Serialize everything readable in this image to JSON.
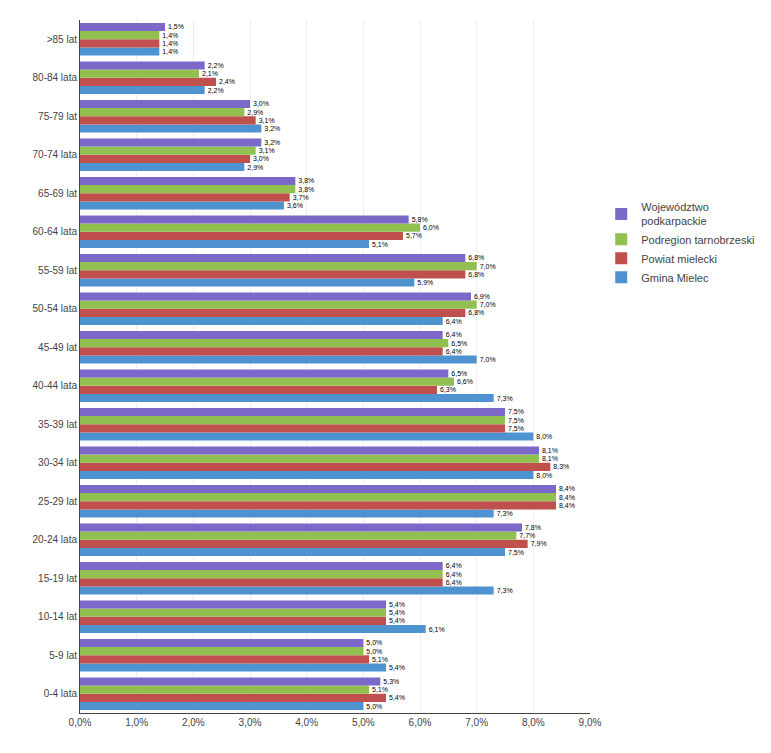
{
  "chart_data": {
    "type": "bar",
    "orientation": "horizontal",
    "categories": [
      "0-4 lata",
      "5-9 lat",
      "10-14 lat",
      "15-19 lat",
      "20-24 lata",
      "25-29 lat",
      "30-34 lat",
      "35-39 lat",
      "40-44 lata",
      "45-49 lat",
      "50-54 lata",
      "55-59 lat",
      "60-64 lata",
      "65-69 lat",
      "70-74 lata",
      "75-79 lat",
      "80-84 lata",
      ">85 lat"
    ],
    "series": [
      {
        "name": "Województwo\npodkarpackie",
        "color": "#7B68C8",
        "values": [
          5.3,
          5.0,
          5.4,
          6.4,
          7.8,
          8.4,
          8.1,
          7.5,
          6.5,
          6.4,
          6.9,
          6.8,
          5.8,
          3.8,
          3.2,
          3.0,
          2.2,
          1.5
        ],
        "value_labels": [
          "5,3%",
          "5,0%",
          "5,4%",
          "6,4%",
          "7,8%",
          "8,4%",
          "8,1%",
          "7,5%",
          "6,5%",
          "6,4%",
          "6,9%",
          "6,8%",
          "5,8%",
          "3,8%",
          "3,2%",
          "3,0%",
          "2,2%",
          "1,5%"
        ]
      },
      {
        "name": "Podregion tarnobrzeski",
        "color": "#92C050",
        "values": [
          5.1,
          5.0,
          5.4,
          6.4,
          7.7,
          8.4,
          8.1,
          7.5,
          6.6,
          6.5,
          7.0,
          7.0,
          6.0,
          3.8,
          3.1,
          2.9,
          2.1,
          1.4
        ],
        "value_labels": [
          "5,1%",
          "5,0%",
          "5,4%",
          "6,4%",
          "7,7%",
          "8,4%",
          "8,1%",
          "7,5%",
          "6,6%",
          "6,5%",
          "7,0%",
          "7,0%",
          "6,0%",
          "3,8%",
          "3,1%",
          "2,9%",
          "2,1%",
          "1,4%"
        ]
      },
      {
        "name": "Powiat mielecki",
        "color": "#C0504D",
        "values": [
          5.4,
          5.1,
          5.4,
          6.4,
          7.9,
          8.4,
          8.3,
          7.5,
          6.3,
          6.4,
          6.8,
          6.8,
          5.7,
          3.7,
          3.0,
          3.1,
          2.4,
          1.4
        ],
        "value_labels": [
          "5,4%",
          "5,1%",
          "5,4%",
          "6,4%",
          "7,9%",
          "8,4%",
          "8,3%",
          "7,5%",
          "6,3%",
          "6,4%",
          "6,8%",
          "6,8%",
          "5,7%",
          "3,7%",
          "3,0%",
          "3,1%",
          "2,4%",
          "1,4%"
        ]
      },
      {
        "name": "Gmina Mielec",
        "color": "#4E92CF",
        "values": [
          5.0,
          5.4,
          6.1,
          7.3,
          7.5,
          7.3,
          8.0,
          8.0,
          7.3,
          7.0,
          6.4,
          5.9,
          5.1,
          3.6,
          2.9,
          3.2,
          2.2,
          1.4
        ],
        "value_labels": [
          "5,0%",
          "5,4%",
          "6,1%",
          "7,3%",
          "7,5%",
          "7,3%",
          "8,0%",
          "8,0%",
          "7,3%",
          "7,0%",
          "6,4%",
          "5,9%",
          "5,1%",
          "3,6%",
          "2,9%",
          "3,2%",
          "2,2%",
          "1,4%"
        ]
      }
    ],
    "xlim": [
      0.0,
      9.0
    ],
    "xticks": [
      {
        "value": 0,
        "label": "0,0%"
      },
      {
        "value": 1,
        "label": "1,0%"
      },
      {
        "value": 2,
        "label": "2,0%"
      },
      {
        "value": 3,
        "label": "3,0%"
      },
      {
        "value": 4,
        "label": "4,0%"
      },
      {
        "value": 5,
        "label": "5,0%"
      },
      {
        "value": 6,
        "label": "6,0%"
      },
      {
        "value": 7,
        "label": "7,0%"
      },
      {
        "value": 8,
        "label": "8,0%"
      },
      {
        "value": 9,
        "label": "9,0%"
      }
    ],
    "grid": true,
    "data_labels": true,
    "legend": "right"
  }
}
